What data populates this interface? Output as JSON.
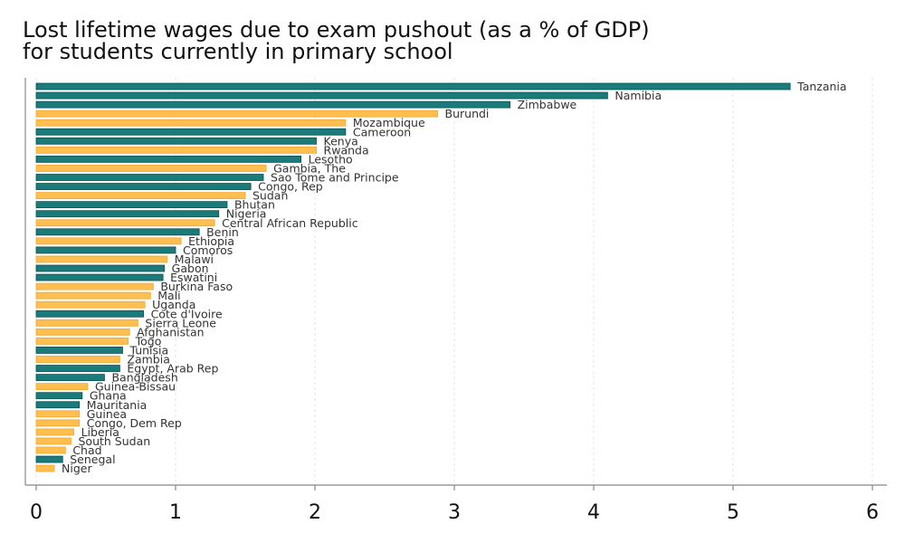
{
  "chart_data": {
    "type": "bar",
    "orientation": "horizontal",
    "title_lines": [
      "Lost lifetime wages due to exam pushout (as a % of GDP)",
      "for students currently in primary school"
    ],
    "xlabel": "",
    "ylabel": "",
    "xlim": [
      0,
      6
    ],
    "x_ticks": [
      0,
      1,
      2,
      3,
      4,
      5,
      6
    ],
    "grid": "vertical-dashed",
    "legend": "none",
    "colors": {
      "teal": "#1b7b7b",
      "teal_edge": "#0f4f4f",
      "orange": "#ffbf50",
      "orange_edge": "#f0a830",
      "axis": "#888888",
      "grid": "#e4e4e4"
    },
    "categories": [
      "Tanzania",
      "Namibia",
      "Zimbabwe",
      "Burundi",
      "Mozambique",
      "Cameroon",
      "Kenya",
      "Rwanda",
      "Lesotho",
      "Gambia, The",
      "Sao Tome and Principe",
      "Congo, Rep",
      "Sudan",
      "Bhutan",
      "Nigeria",
      "Central African Republic",
      "Benin",
      "Ethiopia",
      "Comoros",
      "Malawi",
      "Gabon",
      "Eswatini",
      "Burkina Faso",
      "Mali",
      "Uganda",
      "Cote d'Ivoire",
      "Sierra Leone",
      "Afghanistan",
      "Togo",
      "Tunisia",
      "Zambia",
      "Egypt, Arab Rep",
      "Bangladesh",
      "Guinea-Bissau",
      "Ghana",
      "Mauritania",
      "Guinea",
      "Congo, Dem Rep",
      "Liberia",
      "South Sudan",
      "Chad",
      "Senegal",
      "Niger"
    ],
    "values": [
      5.41,
      4.1,
      3.4,
      2.88,
      2.22,
      2.22,
      2.01,
      2.01,
      1.9,
      1.65,
      1.63,
      1.54,
      1.5,
      1.37,
      1.31,
      1.28,
      1.17,
      1.04,
      1.0,
      0.94,
      0.92,
      0.91,
      0.84,
      0.82,
      0.78,
      0.77,
      0.73,
      0.67,
      0.66,
      0.62,
      0.6,
      0.6,
      0.49,
      0.37,
      0.33,
      0.31,
      0.31,
      0.31,
      0.27,
      0.25,
      0.21,
      0.19,
      0.13
    ],
    "bar_colors": [
      "teal",
      "teal",
      "teal",
      "orange",
      "orange",
      "teal",
      "teal",
      "orange",
      "teal",
      "orange",
      "teal",
      "teal",
      "orange",
      "teal",
      "teal",
      "orange",
      "teal",
      "orange",
      "teal",
      "orange",
      "teal",
      "teal",
      "orange",
      "orange",
      "orange",
      "teal",
      "orange",
      "orange",
      "orange",
      "teal",
      "orange",
      "teal",
      "teal",
      "orange",
      "teal",
      "teal",
      "orange",
      "orange",
      "orange",
      "orange",
      "orange",
      "teal",
      "orange"
    ]
  }
}
